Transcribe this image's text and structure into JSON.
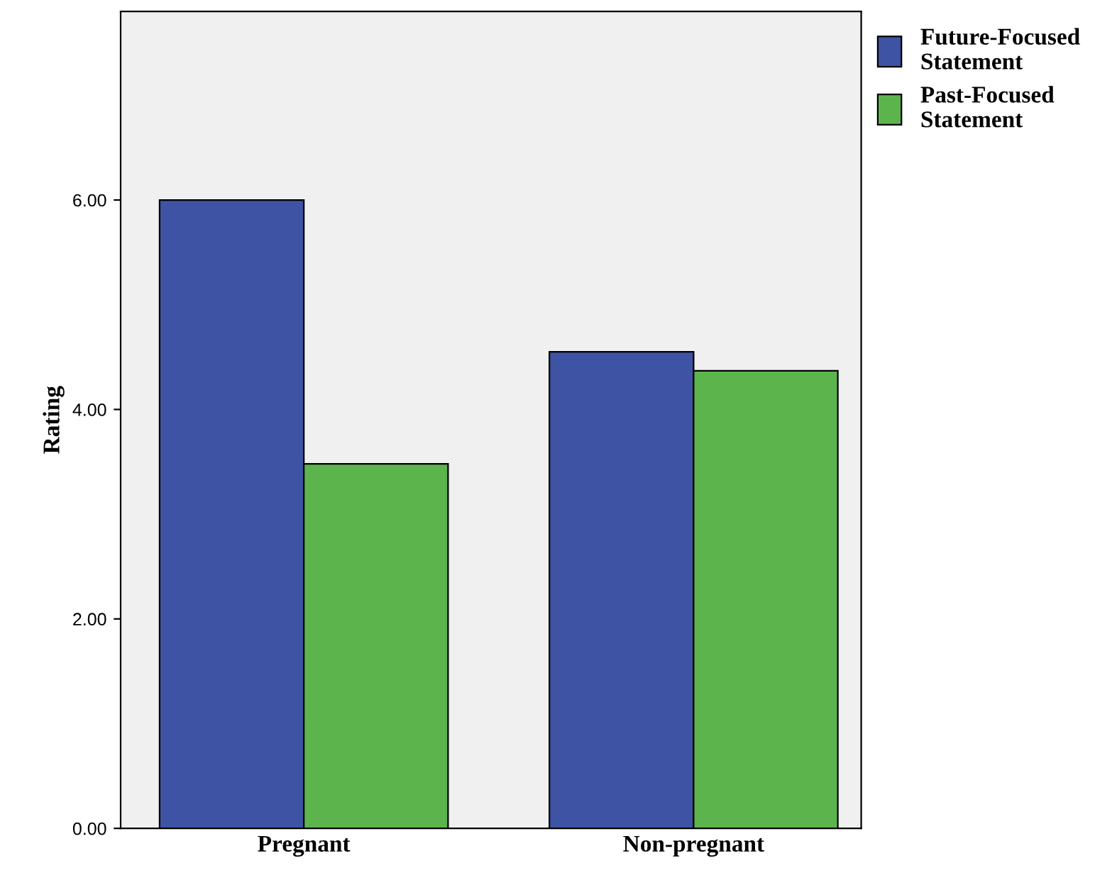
{
  "chart_data": {
    "type": "bar",
    "ylabel": "Rating",
    "categories": [
      "Pregnant",
      "Non-pregnant"
    ],
    "series": [
      {
        "name": "Future-Focused\nStatement",
        "color": "#3e53a4",
        "values": [
          6.0,
          4.55
        ]
      },
      {
        "name": "Past-Focused\nStatement",
        "color": "#5cb54c",
        "values": [
          3.48,
          4.37
        ]
      }
    ],
    "ylim": [
      0,
      7.8
    ],
    "yticks": [
      {
        "value": 0,
        "label": "0.00"
      },
      {
        "value": 2,
        "label": "2.00"
      },
      {
        "value": 4,
        "label": "4.00"
      },
      {
        "value": 6,
        "label": "6.00"
      }
    ],
    "grid": false,
    "legend": "top right"
  }
}
